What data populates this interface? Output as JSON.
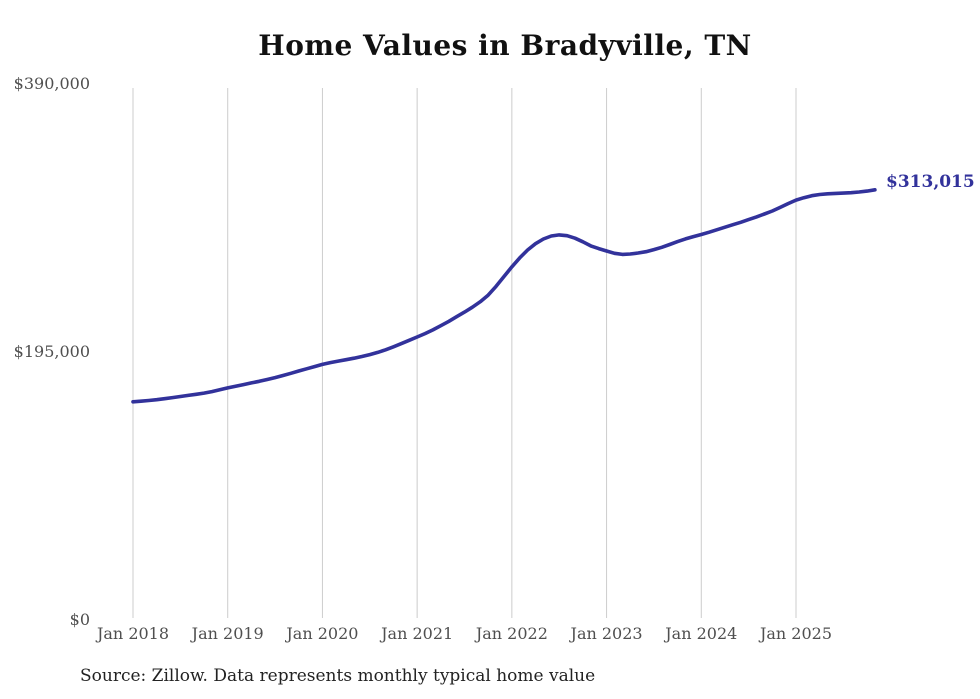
{
  "title": "Home Values in Bradyville, TN",
  "end_label": "$313,015",
  "source": "Source: Zillow. Data represents monthly typical home value",
  "colors": {
    "line": "#32329b",
    "grid": "#cccccc",
    "axis_text": "#4f4f4f",
    "title_text": "#111111",
    "end_label_text": "#32329b"
  },
  "chart_data": {
    "type": "line",
    "title": "Home Values in Bradyville, TN",
    "xlabel": "",
    "ylabel": "",
    "ylim": [
      0,
      390000
    ],
    "grid": "vertical-only",
    "legend": "none",
    "y_ticks": [
      {
        "value": 390000,
        "label": "$390,000"
      },
      {
        "value": 195000,
        "label": "$195,000"
      },
      {
        "value": 0,
        "label": "$0"
      }
    ],
    "x_tick_labels": [
      "Jan 2018",
      "Jan 2019",
      "Jan 2020",
      "Jan 2021",
      "Jan 2022",
      "Jan 2023",
      "Jan 2024",
      "Jan 2025"
    ],
    "x_start_month": "2018-01",
    "x_end_month": "2025-11",
    "end_value": 313015,
    "end_value_label": "$313,015",
    "series": [
      {
        "name": "Monthly typical home value",
        "values": [
          158800,
          159200,
          159700,
          160300,
          161000,
          161800,
          162600,
          163400,
          164200,
          165100,
          166200,
          167500,
          168900,
          170100,
          171300,
          172500,
          173700,
          175000,
          176400,
          177900,
          179500,
          181200,
          182800,
          184400,
          186000,
          187300,
          188400,
          189400,
          190500,
          191700,
          193100,
          194700,
          196600,
          198800,
          201100,
          203500,
          205900,
          208400,
          211100,
          214100,
          217300,
          220700,
          224000,
          227600,
          231600,
          236400,
          242800,
          249900,
          257000,
          263500,
          269200,
          273800,
          277200,
          279400,
          280200,
          279600,
          277800,
          275200,
          272200,
          270200,
          268500,
          266800,
          266000,
          266300,
          267000,
          268000,
          269500,
          271200,
          273200,
          275300,
          277300,
          279000,
          280500,
          282200,
          284000,
          285800,
          287600,
          289400,
          291300,
          293300,
          295400,
          297600,
          300200,
          303000,
          305500,
          307300,
          308700,
          309600,
          310100,
          310400,
          310600,
          310900,
          311400,
          312100,
          313015
        ]
      }
    ]
  }
}
